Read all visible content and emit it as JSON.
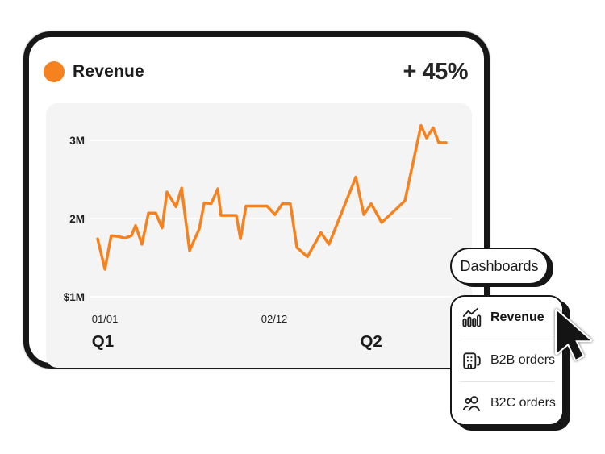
{
  "header": {
    "title": "Revenue",
    "delta": "+ 45%",
    "accent_color": "#F6821F"
  },
  "chart_data": {
    "type": "line",
    "title": "Revenue",
    "series_name": "Revenue",
    "unit": "millions",
    "line_color": "#F6821F",
    "panel_color": "#f4f4f4",
    "grid_color": "#ffffff",
    "label_color": "#1f1f1f",
    "grid": true,
    "legend": "none",
    "ylim": [
      0.9,
      3.4
    ],
    "y_ticks": [
      {
        "label": "3M",
        "value": 3
      },
      {
        "label": "2M",
        "value": 2
      },
      {
        "label": "$1M",
        "value": 1
      }
    ],
    "x_ticks": [
      {
        "label": "01/01",
        "f": 0.021
      },
      {
        "label": "02/12",
        "f": 0.507
      }
    ],
    "quarter_labels": [
      {
        "label": "Q1",
        "f": 0.015
      },
      {
        "label": "Q2",
        "f": 0.785
      }
    ],
    "points": [
      [
        0.0,
        1.74
      ],
      [
        0.021,
        1.35
      ],
      [
        0.039,
        1.78
      ],
      [
        0.06,
        1.77
      ],
      [
        0.079,
        1.75
      ],
      [
        0.097,
        1.78
      ],
      [
        0.109,
        1.91
      ],
      [
        0.127,
        1.67
      ],
      [
        0.146,
        2.07
      ],
      [
        0.167,
        2.07
      ],
      [
        0.185,
        1.88
      ],
      [
        0.199,
        2.34
      ],
      [
        0.225,
        2.15
      ],
      [
        0.241,
        2.39
      ],
      [
        0.264,
        1.59
      ],
      [
        0.292,
        1.87
      ],
      [
        0.306,
        2.2
      ],
      [
        0.326,
        2.19
      ],
      [
        0.345,
        2.38
      ],
      [
        0.354,
        2.04
      ],
      [
        0.398,
        2.04
      ],
      [
        0.41,
        1.74
      ],
      [
        0.426,
        2.16
      ],
      [
        0.486,
        2.16
      ],
      [
        0.509,
        2.05
      ],
      [
        0.53,
        2.19
      ],
      [
        0.553,
        2.19
      ],
      [
        0.572,
        1.63
      ],
      [
        0.602,
        1.51
      ],
      [
        0.641,
        1.82
      ],
      [
        0.664,
        1.67
      ],
      [
        0.741,
        2.53
      ],
      [
        0.764,
        2.05
      ],
      [
        0.785,
        2.19
      ],
      [
        0.815,
        1.95
      ],
      [
        0.859,
        2.13
      ],
      [
        0.882,
        2.23
      ],
      [
        0.928,
        3.19
      ],
      [
        0.944,
        3.03
      ],
      [
        0.963,
        3.16
      ],
      [
        0.979,
        2.97
      ],
      [
        1.0,
        2.97
      ]
    ]
  },
  "dashboards_menu": {
    "trigger_label": "Dashboards",
    "items": [
      {
        "label": "Revenue",
        "icon": "revenue-chart-icon",
        "active": true
      },
      {
        "label": "B2B orders",
        "icon": "b2b-building-icon",
        "active": false
      },
      {
        "label": "B2C orders",
        "icon": "b2c-people-icon",
        "active": false
      }
    ]
  },
  "cursor": {
    "icon": "pointer-cursor"
  }
}
